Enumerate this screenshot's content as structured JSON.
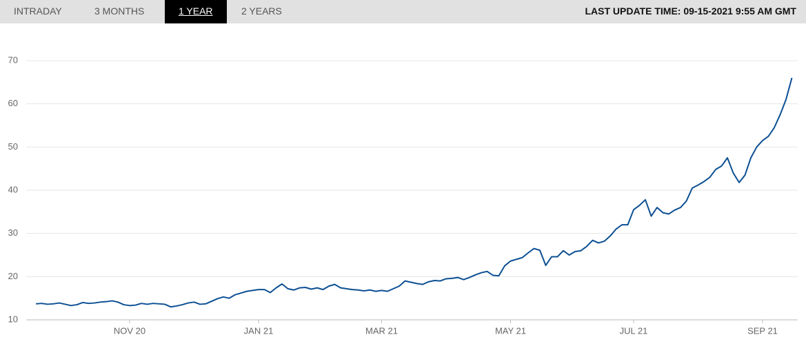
{
  "tabs": [
    {
      "label": "INTRADAY",
      "active": false
    },
    {
      "label": "3 MONTHS",
      "active": false
    },
    {
      "label": "1 YEAR",
      "active": true
    },
    {
      "label": "2 YEARS",
      "active": false
    }
  ],
  "last_update": "LAST UPDATE TIME: 09-15-2021 9:55 AM GMT",
  "chart_data": {
    "type": "line",
    "categories": [
      null,
      null,
      null,
      null,
      null,
      null,
      null,
      null,
      null,
      null,
      null,
      null,
      null,
      null,
      null,
      null,
      "NOV 20",
      null,
      null,
      null,
      null,
      null,
      null,
      null,
      null,
      null,
      null,
      null,
      null,
      null,
      null,
      null,
      null,
      null,
      null,
      null,
      null,
      null,
      "JAN 21",
      null,
      null,
      null,
      null,
      null,
      null,
      null,
      null,
      null,
      null,
      null,
      null,
      null,
      null,
      null,
      null,
      null,
      null,
      null,
      null,
      "MAR 21",
      null,
      null,
      null,
      null,
      null,
      null,
      null,
      null,
      null,
      null,
      null,
      null,
      null,
      null,
      null,
      null,
      null,
      null,
      null,
      null,
      null,
      "MAY 21",
      null,
      null,
      null,
      null,
      null,
      null,
      null,
      null,
      null,
      null,
      null,
      null,
      null,
      null,
      null,
      null,
      null,
      null,
      null,
      null,
      "JUL 21",
      null,
      null,
      null,
      null,
      null,
      null,
      null,
      null,
      null,
      null,
      null,
      null,
      null,
      null,
      null,
      null,
      null,
      null,
      null,
      null,
      null,
      "SEP 21",
      null,
      null,
      null,
      null,
      null
    ],
    "values": [
      13.7,
      13.8,
      13.6,
      13.7,
      13.9,
      13.6,
      13.3,
      13.5,
      14.0,
      13.8,
      13.9,
      14.1,
      14.2,
      14.4,
      14.1,
      13.5,
      13.3,
      13.4,
      13.8,
      13.6,
      13.8,
      13.7,
      13.6,
      13.0,
      13.2,
      13.5,
      13.9,
      14.1,
      13.6,
      13.7,
      14.3,
      14.9,
      15.3,
      15.0,
      15.8,
      16.2,
      16.6,
      16.8,
      17.0,
      17.0,
      16.3,
      17.4,
      18.3,
      17.2,
      16.9,
      17.4,
      17.5,
      17.1,
      17.4,
      17.0,
      17.8,
      18.2,
      17.4,
      17.2,
      17.0,
      16.9,
      16.7,
      16.9,
      16.6,
      16.8,
      16.6,
      17.2,
      17.8,
      19.0,
      18.7,
      18.4,
      18.2,
      18.8,
      19.1,
      19.0,
      19.5,
      19.6,
      19.8,
      19.3,
      19.8,
      20.4,
      20.9,
      21.2,
      20.3,
      20.2,
      22.5,
      23.6,
      24.0,
      24.4,
      25.5,
      26.5,
      26.1,
      22.6,
      24.6,
      24.6,
      26.0,
      25.0,
      25.8,
      26.0,
      27.0,
      28.4,
      27.8,
      28.2,
      29.4,
      31.0,
      32.0,
      32.0,
      35.5,
      36.5,
      37.8,
      34.0,
      36.0,
      34.8,
      34.5,
      35.4,
      36.0,
      37.5,
      40.5,
      41.2,
      42.0,
      43.0,
      44.8,
      45.6,
      47.5,
      44.0,
      41.8,
      43.5,
      47.5,
      50.0,
      51.5,
      52.5,
      54.5,
      57.5,
      61.0,
      66.0
    ],
    "color": "#0b4f93",
    "ylim": [
      10,
      70
    ],
    "yticks": [
      10,
      20,
      30,
      40,
      50,
      60,
      70
    ],
    "grid": true
  }
}
